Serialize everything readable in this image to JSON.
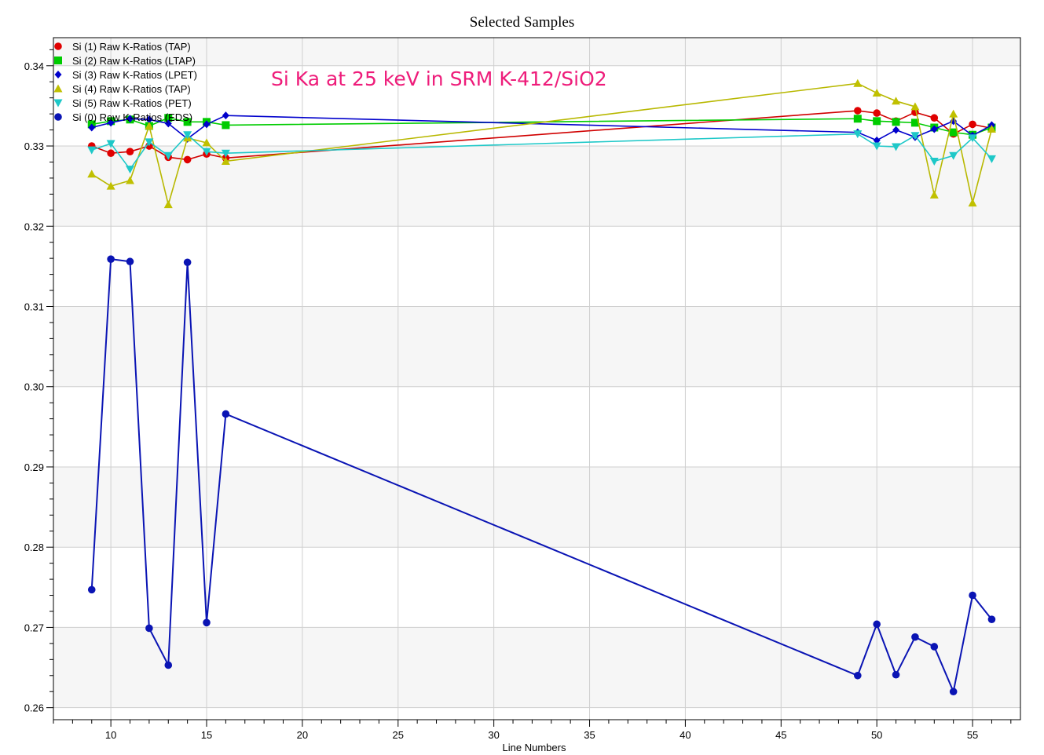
{
  "chart_data": {
    "type": "line",
    "title": "Selected Samples",
    "xlabel": "Line Numbers",
    "ylabel": "",
    "xlim": [
      7,
      57.5
    ],
    "ylim": [
      0.2585,
      0.3435
    ],
    "xticks": [
      10,
      15,
      20,
      25,
      30,
      35,
      40,
      45,
      50,
      55
    ],
    "yticks": [
      0.26,
      0.27,
      0.28,
      0.29,
      0.3,
      0.31,
      0.32,
      0.33,
      0.34
    ],
    "ytick_labels": [
      "0.26",
      "0.27",
      "0.28",
      "0.29",
      "0.30",
      "0.31",
      "0.32",
      "0.33",
      "0.34"
    ],
    "grid": true,
    "legend_position": "top-left",
    "annotation": {
      "text": "Si Ka at 25 keV in SRM K-412/SiO2",
      "color": "#ee1c7a"
    },
    "x": [
      9,
      10,
      11,
      12,
      13,
      14,
      15,
      16,
      49,
      50,
      51,
      52,
      53,
      54,
      55,
      56
    ],
    "series": [
      {
        "name": "Si (1) Raw K-Ratios (TAP)",
        "color": "#e00000",
        "line_color": "#d00000",
        "marker": "circle",
        "values": [
          0.33,
          0.3291,
          0.3293,
          0.33,
          0.3286,
          0.3283,
          0.329,
          0.3285,
          0.3344,
          0.3341,
          0.3331,
          0.3342,
          0.3335,
          0.3315,
          0.3327,
          0.3322
        ]
      },
      {
        "name": "Si (2) Raw K-Ratios (LTAP)",
        "color": "#00cc00",
        "line_color": "#00cc00",
        "marker": "square",
        "values": [
          0.3327,
          0.3331,
          0.3333,
          0.3325,
          0.3335,
          0.333,
          0.333,
          0.3326,
          0.3334,
          0.3331,
          0.333,
          0.3329,
          0.3323,
          0.3317,
          0.3314,
          0.3323
        ]
      },
      {
        "name": "Si (3) Raw K-Ratios (LPET)",
        "color": "#0000cc",
        "line_color": "#0000cc",
        "marker": "diamond",
        "values": [
          0.3323,
          0.3329,
          0.3334,
          0.3333,
          0.3328,
          0.3309,
          0.3327,
          0.3338,
          0.3317,
          0.3307,
          0.332,
          0.3311,
          0.3321,
          0.3331,
          0.3313,
          0.3326
        ]
      },
      {
        "name": "Si (4) Raw K-Ratios (TAP)",
        "color": "#c0c000",
        "line_color": "#b8b800",
        "marker": "triangle-up",
        "values": [
          0.3265,
          0.325,
          0.3257,
          0.3325,
          0.3227,
          0.331,
          0.3304,
          0.3281,
          0.3378,
          0.3366,
          0.3356,
          0.3349,
          0.3239,
          0.334,
          0.3229,
          0.3321
        ]
      },
      {
        "name": "Si (5) Raw K-Ratios (PET)",
        "color": "#1ec8c8",
        "line_color": "#1ec8c8",
        "marker": "triangle-down",
        "values": [
          0.3295,
          0.3303,
          0.3271,
          0.3305,
          0.3288,
          0.3314,
          0.3293,
          0.3291,
          0.3315,
          0.33,
          0.3299,
          0.3313,
          0.3281,
          0.3288,
          0.331,
          0.3284
        ]
      },
      {
        "name": "Si (0) Raw K-Ratios (EDS)",
        "color": "#0a14b4",
        "line_color": "#0a14b4",
        "marker": "circle",
        "values": [
          0.2747,
          0.3159,
          0.3156,
          0.2699,
          0.2653,
          0.3155,
          0.2706,
          0.2966,
          0.264,
          0.2704,
          0.2641,
          0.2688,
          0.2676,
          0.262,
          0.274,
          0.271
        ]
      }
    ]
  }
}
